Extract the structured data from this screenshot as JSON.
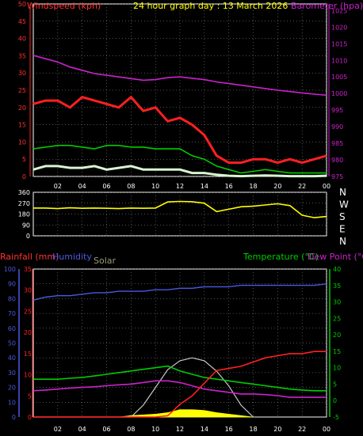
{
  "colors": {
    "bg": "#000000",
    "grid": "#9aa0a0",
    "frame": "#ffffff",
    "windspeed": "#ff2020",
    "windavg": "#00cc00",
    "gust_low": "#d8f5d0",
    "barometer": "#cc22cc",
    "direction": "#ffff00",
    "rain": "#ff2020",
    "humidity": "#4a5adf",
    "solar": "#c8c8c8",
    "solar_fill": "#ffff00",
    "temperature": "#00cc00",
    "dewpoint": "#cc22cc",
    "title": "#ffff00",
    "label_red": "#ff3333"
  },
  "chart_data": [
    {
      "id": "wind-baro",
      "type": "line",
      "title": "24 hour graph day : 13 March 2026",
      "ylabel_left": "Windspeed (kph)",
      "ylabel_right": "Barometer (hpa)",
      "x_ticks": [
        "02",
        "04",
        "06",
        "08",
        "10",
        "12",
        "14",
        "16",
        "18",
        "20",
        "22",
        "00"
      ],
      "left_ticks": [
        0,
        5,
        10,
        15,
        20,
        25,
        30,
        35,
        40,
        45,
        50
      ],
      "right_ticks": [
        975,
        980,
        985,
        990,
        995,
        1000,
        1005,
        1010,
        1015,
        1020,
        1025
      ],
      "ylim_left": [
        0,
        50
      ],
      "ylim_right": [
        975,
        1027
      ],
      "x": [
        0,
        1,
        2,
        3,
        4,
        5,
        6,
        7,
        8,
        9,
        10,
        11,
        12,
        13,
        14,
        15,
        16,
        17,
        18,
        19,
        20,
        21,
        22,
        23,
        24
      ],
      "series": [
        {
          "key": "barometer",
          "axis": "right",
          "values": [
            1011.5,
            1010.5,
            1009.5,
            1008,
            1007,
            1006,
            1005.5,
            1005,
            1004.5,
            1004,
            1004.2,
            1004.8,
            1005,
            1004.6,
            1004.2,
            1003.5,
            1003,
            1002.5,
            1002,
            1001.5,
            1001,
            1000.6,
            1000.2,
            999.8,
            999.5
          ]
        },
        {
          "key": "windspeed",
          "axis": "left",
          "values": [
            21,
            22,
            22,
            20,
            23,
            22,
            21,
            20,
            23,
            19,
            20,
            16,
            17,
            15,
            12,
            6,
            4,
            4,
            5,
            5,
            4,
            5,
            4,
            5,
            6
          ]
        },
        {
          "key": "windavg",
          "axis": "left",
          "values": [
            8,
            8.5,
            9,
            9,
            8.5,
            8,
            9,
            9,
            8.5,
            8.5,
            8,
            8,
            8,
            6,
            5,
            3,
            2,
            1,
            1.5,
            2,
            1.5,
            1,
            1,
            1,
            1
          ]
        },
        {
          "key": "gust_low",
          "axis": "left",
          "values": [
            2,
            3,
            3,
            2.5,
            2.5,
            3,
            2,
            2.5,
            3,
            2,
            2,
            2,
            2,
            1,
            1,
            0.5,
            0.2,
            0.1,
            0.2,
            0.3,
            0.2,
            0.1,
            0.1,
            0.1,
            0.2
          ]
        }
      ]
    },
    {
      "id": "direction",
      "type": "line",
      "left_ticks": [
        0,
        90,
        180,
        270,
        360
      ],
      "compass": [
        "N",
        "W",
        "S",
        "E",
        "N"
      ],
      "ylim": [
        0,
        360
      ],
      "x": [
        0,
        1,
        2,
        3,
        4,
        5,
        6,
        7,
        8,
        9,
        10,
        11,
        12,
        13,
        14,
        15,
        16,
        17,
        18,
        19,
        20,
        21,
        22,
        23,
        24
      ],
      "series": [
        {
          "key": "direction",
          "values": [
            230,
            230,
            225,
            232,
            228,
            230,
            228,
            225,
            230,
            228,
            230,
            280,
            285,
            282,
            270,
            200,
            220,
            240,
            245,
            255,
            265,
            250,
            170,
            150,
            160
          ]
        }
      ]
    },
    {
      "id": "rain-temp",
      "type": "line",
      "legend": [
        "Rainfall (mm)",
        "Humidity",
        "Solar",
        "Temperature (°C)",
        "Dew Point (°C)"
      ],
      "hum_ticks": [
        0,
        10,
        20,
        30,
        40,
        50,
        60,
        70,
        80,
        90,
        100
      ],
      "rain_ticks": [
        0,
        5,
        10,
        15,
        20,
        25,
        30,
        35
      ],
      "temp_ticks": [
        -5,
        0,
        5,
        10,
        15,
        20,
        25,
        30,
        35,
        40
      ],
      "x_ticks": [
        "02",
        "04",
        "06",
        "08",
        "10",
        "12",
        "14",
        "16",
        "18",
        "20",
        "22",
        "00"
      ],
      "ylim_hum": [
        0,
        100
      ],
      "ylim_rain": [
        0,
        35
      ],
      "ylim_temp": [
        -5,
        40
      ],
      "x": [
        0,
        1,
        2,
        3,
        4,
        5,
        6,
        7,
        8,
        9,
        10,
        11,
        12,
        13,
        14,
        15,
        16,
        17,
        18,
        19,
        20,
        21,
        22,
        23,
        24
      ],
      "series": [
        {
          "key": "humidity",
          "axis": "hum",
          "values": [
            79,
            81,
            82,
            82,
            83,
            84,
            84,
            85,
            85,
            85,
            86,
            86,
            87,
            87,
            88,
            88,
            88,
            89,
            89,
            89,
            89,
            89,
            89,
            89,
            90
          ]
        },
        {
          "key": "temperature",
          "axis": "temp",
          "values": [
            6.5,
            6.5,
            6.5,
            6.8,
            7,
            7.5,
            8,
            8.5,
            9,
            9.5,
            10,
            10.5,
            9,
            8,
            7,
            6.5,
            6,
            5.5,
            5,
            4.5,
            4,
            3.5,
            3.2,
            3,
            3
          ]
        },
        {
          "key": "dewpoint",
          "axis": "temp",
          "values": [
            3,
            3.2,
            3.5,
            3.8,
            4,
            4.2,
            4.5,
            4.8,
            5,
            5.5,
            6,
            6,
            5.5,
            4.5,
            3.5,
            3,
            2.5,
            2,
            2,
            1.8,
            1.5,
            1,
            1,
            1,
            1
          ]
        },
        {
          "key": "rain",
          "axis": "rain",
          "values": [
            0,
            0,
            0,
            0,
            0,
            0,
            0,
            0,
            0,
            0,
            0,
            0.3,
            3,
            5,
            8,
            11,
            11.5,
            12,
            13,
            14,
            14.5,
            15,
            15,
            15.5,
            15.5
          ]
        },
        {
          "key": "solar",
          "axis": "hum",
          "values": [
            0,
            0,
            0,
            0,
            0,
            0,
            0,
            0,
            0,
            8,
            20,
            32,
            38,
            40,
            38,
            31,
            21,
            8,
            0,
            0,
            0,
            0,
            0,
            0,
            0
          ]
        },
        {
          "key": "solar_fill",
          "axis": "hum",
          "values": [
            0,
            0,
            0,
            0,
            0,
            0,
            0,
            0,
            1,
            1.5,
            2,
            3,
            5,
            5,
            4.5,
            3,
            2,
            1,
            0,
            0,
            0,
            0,
            0,
            0,
            0
          ]
        }
      ]
    }
  ]
}
